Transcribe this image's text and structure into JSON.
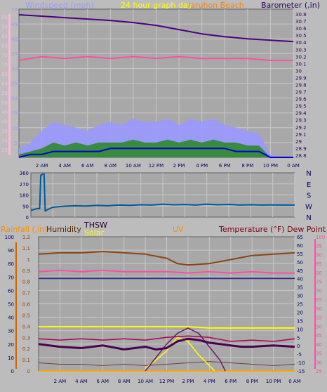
{
  "header": {
    "windspeed_label": "Windspeed (mph)",
    "graph_title": "24 hour graph day",
    "site_name": "Jaruhon Beach",
    "barometer_label": "Barometer (,in)"
  },
  "bottom_header": {
    "rainfall_label": "Rainfall (,in)",
    "humidity_label": "Humidity",
    "thsw_label": "THSW",
    "solar_label": "Solar",
    "uv_label": "UV",
    "temperature_label": "Temperature (°F) Dew Point (°F)"
  },
  "direction_labels": [
    "N",
    "W",
    "S",
    "E",
    "N"
  ],
  "colors": {
    "background": "#bcbcbc",
    "plot_bg": "#a8a8a8",
    "grid": "#c8c8c8",
    "windspeed_axis": "#ffb6d9",
    "windspeed_gust": "#9999ff",
    "windspeed_avg": "#0000cc",
    "windspeed_fill": "#2e8b2e",
    "barometer": "#4b0082",
    "temp_pink": "#ff4fa0",
    "direction": "#005a9c",
    "rainfall_axis": "#cc6600",
    "humidity": "#8b4513",
    "uv": "#ffa500",
    "solar": "#ffff00",
    "temperature_line": "#b00050",
    "dewpoint_line": "#4b0050"
  },
  "chart_data": [
    {
      "type": "line",
      "title": "24 hour graph day",
      "x_ticks": [
        "2 AM",
        "4 AM",
        "6 AM",
        "8 AM",
        "10 AM",
        "12 PM",
        "2 PM",
        "4 PM",
        "6 PM",
        "8 PM",
        "10 PM",
        "0 AM"
      ],
      "y_left": {
        "label": "Windspeed (mph)",
        "ticks": [
          5,
          10,
          15,
          20,
          25,
          30,
          35,
          40,
          45,
          50
        ],
        "ylim": [
          0,
          50
        ]
      },
      "y_outer": {
        "ticks": [
          25,
          30,
          35,
          40,
          45,
          50,
          55,
          60,
          65,
          70,
          75,
          80,
          85,
          90,
          95
        ],
        "ylim": [
          21,
          99
        ]
      },
      "y_right": {
        "label": "Barometer (,in)",
        "ticks": [
          "28.8",
          "28.9",
          "29",
          "29.1",
          "29.2",
          "29.3",
          "29.4",
          "29.5",
          "29.6",
          "29.7",
          "29.8",
          "29.9",
          "30",
          "30.1",
          "30.2",
          "30.3",
          "30.4",
          "30.5",
          "30.6",
          "30.7",
          "30.8"
        ],
        "ylim": [
          28.77,
          30.87
        ]
      },
      "series": [
        {
          "name": "Barometer",
          "axis": "right",
          "x": [
            0,
            2,
            4,
            6,
            8,
            10,
            12,
            14,
            16,
            18,
            20,
            22,
            24
          ],
          "y": [
            30.79,
            30.77,
            30.75,
            30.73,
            30.71,
            30.68,
            30.64,
            30.58,
            30.52,
            30.48,
            30.45,
            30.43,
            30.41
          ]
        },
        {
          "axis": "outer",
          "x": [
            0,
            2,
            4,
            6,
            8,
            10,
            12,
            14,
            16,
            18,
            20,
            22,
            24
          ],
          "y": [
            72,
            74,
            73,
            74,
            73,
            74,
            73,
            74,
            73,
            73,
            73,
            72,
            72
          ]
        },
        {
          "axis": "left",
          "x": [
            0,
            1,
            2,
            3,
            4,
            5,
            6,
            7,
            8,
            9,
            10,
            11,
            12,
            13,
            14,
            15,
            16,
            17,
            18,
            19,
            20,
            21,
            22,
            23,
            24
          ],
          "y": [
            1,
            2,
            3,
            5,
            4,
            5,
            4,
            5,
            5,
            5,
            6,
            5,
            5,
            6,
            5,
            6,
            5,
            6,
            5,
            5,
            4,
            4,
            0,
            0,
            0
          ]
        },
        {
          "axis": "left",
          "x": [
            0,
            1,
            2,
            3,
            4,
            5,
            6,
            7,
            8,
            9,
            10,
            11,
            12,
            13,
            14,
            15,
            16,
            17,
            18,
            19,
            20,
            21,
            22,
            23,
            24
          ],
          "y": [
            3,
            5,
            9,
            12,
            11,
            10,
            9,
            11,
            12,
            11,
            13,
            12,
            12,
            13,
            11,
            13,
            12,
            13,
            11,
            10,
            9,
            8,
            1,
            0,
            0
          ]
        },
        {
          "axis": "left",
          "x": [
            0,
            1,
            2,
            3,
            4,
            5,
            6,
            7,
            8,
            9,
            10,
            11,
            12,
            13,
            14,
            15,
            16,
            17,
            18,
            19,
            20,
            21,
            22,
            23,
            24
          ],
          "y": [
            0,
            1,
            1,
            2,
            2,
            2,
            2,
            2,
            3,
            3,
            3,
            3,
            3,
            3,
            3,
            3,
            3,
            3,
            3,
            2,
            2,
            2,
            0,
            0,
            0
          ]
        }
      ]
    },
    {
      "type": "line",
      "x_ticks": [
        "2 AM",
        "4 AM",
        "6 AM",
        "8 AM",
        "10 AM",
        "12 PM",
        "2 PM",
        "4 PM",
        "6 PM",
        "8 PM",
        "10 PM",
        "0 AM"
      ],
      "y_left": {
        "ticks": [
          0,
          90,
          180,
          270,
          360
        ],
        "ylim": [
          0,
          360
        ]
      },
      "y_right": {
        "ticks": [
          "N",
          "W",
          "S",
          "E",
          "N"
        ]
      },
      "series": [
        {
          "axis": "left",
          "x": [
            0,
            0.3,
            0.6,
            0.8,
            0.9,
            1.0,
            1.1,
            1.2,
            1.3,
            1.5,
            2,
            3,
            4,
            5,
            6,
            7,
            8,
            9,
            10,
            11,
            12,
            13,
            14,
            15,
            16,
            17,
            18,
            19,
            20,
            21,
            22,
            23,
            24
          ],
          "y": [
            55,
            62,
            70,
            68,
            340,
            345,
            350,
            350,
            50,
            60,
            80,
            88,
            92,
            90,
            95,
            92,
            98,
            95,
            100,
            98,
            105,
            100,
            102,
            98,
            105,
            100,
            103,
            98,
            100,
            98,
            99,
            98,
            98
          ]
        }
      ]
    },
    {
      "type": "line",
      "x_ticks": [
        "2 AM",
        "4 AM",
        "6 AM",
        "8 AM",
        "10 AM",
        "12 PM",
        "2 PM",
        "4 PM",
        "6 PM",
        "8 PM",
        "10 PM",
        "0 AM"
      ],
      "y_left": {
        "label": "Rainfall (,in)",
        "ticks": [
          0,
          10,
          20,
          30,
          40,
          50,
          60,
          70,
          80,
          90,
          100
        ],
        "ylim": [
          0,
          100
        ]
      },
      "y_left_inner": {
        "label": "UV",
        "ticks": [
          "0",
          "0.1",
          "0.2",
          "0.3",
          "0.4",
          "0.5",
          "0.6",
          "0.7",
          "0.8",
          "0.9",
          "1",
          "1.1",
          "1.2"
        ]
      },
      "y_right": {
        "label": "Temperature (°F) Dew Point (°F)",
        "ticks": [
          65,
          60,
          55,
          50,
          45,
          40,
          35,
          30,
          25,
          20,
          15,
          10,
          5,
          0,
          -5,
          -10,
          -15
        ]
      },
      "y_right_outer": {
        "ticks": [
          100,
          95,
          90,
          85,
          80,
          75,
          70,
          65,
          60,
          55,
          50,
          45,
          40,
          35,
          30,
          25
        ]
      },
      "series": [
        {
          "name": "Humidity",
          "x": [
            0,
            2,
            4,
            6,
            8,
            10,
            12,
            13,
            14,
            16,
            18,
            20,
            22,
            24
          ],
          "y": [
            87,
            88,
            88,
            89,
            88,
            87,
            84,
            80,
            79,
            80,
            83,
            86,
            87,
            88
          ]
        },
        {
          "x": [
            0,
            2,
            4,
            6,
            8,
            10,
            12,
            14,
            16,
            18,
            20,
            22,
            24
          ],
          "y": [
            74,
            75,
            74,
            75,
            74,
            74,
            74,
            73,
            74,
            73,
            74,
            73,
            73
          ]
        },
        {
          "x": [
            0,
            24
          ],
          "y": [
            69,
            69
          ]
        },
        {
          "name": "Solar",
          "x": [
            0,
            2,
            4,
            6,
            8,
            10,
            12,
            14,
            16,
            18,
            20,
            22,
            24
          ],
          "y": [
            33,
            33,
            33,
            33,
            33,
            33,
            33,
            33,
            32,
            32,
            32,
            32,
            32
          ]
        },
        {
          "name": "UV",
          "x": [
            0,
            2,
            4,
            6,
            8,
            10,
            12,
            14,
            16,
            18,
            20,
            22,
            24
          ],
          "y": [
            0,
            0,
            0,
            0,
            0,
            0,
            0,
            0,
            0,
            0,
            0,
            0,
            0
          ]
        },
        {
          "name": "THSW",
          "x": [
            0,
            2,
            4,
            6,
            8,
            10,
            12,
            14,
            16,
            18,
            20,
            22,
            24
          ],
          "y": [
            24,
            23,
            24,
            23,
            24,
            23,
            25,
            26,
            25,
            22,
            23,
            22,
            24
          ]
        },
        {
          "name": "Temperature",
          "x": [
            0,
            2,
            4,
            6,
            8,
            10,
            11,
            12,
            13,
            14,
            15,
            16,
            17,
            18,
            19,
            20,
            22,
            24
          ],
          "y": [
            20,
            18,
            17,
            19,
            16,
            18,
            16,
            17,
            22,
            24,
            23,
            21,
            20,
            19,
            18,
            18,
            19,
            18
          ]
        },
        {
          "x": [
            10,
            11,
            12,
            13,
            14,
            15,
            16,
            17,
            17.5
          ],
          "y": [
            0,
            10,
            20,
            28,
            32,
            28,
            18,
            8,
            0
          ]
        },
        {
          "x": [
            10,
            11,
            12,
            13,
            14,
            15,
            16,
            16.5
          ],
          "y": [
            2,
            8,
            15,
            25,
            22,
            12,
            4,
            0
          ]
        },
        {
          "x": [
            0,
            2,
            4,
            6,
            8,
            10,
            12,
            14,
            16,
            18,
            20,
            22,
            24
          ],
          "y": [
            6,
            5,
            5,
            4,
            5,
            4,
            5,
            6,
            7,
            6,
            5,
            4,
            5
          ]
        }
      ]
    }
  ]
}
